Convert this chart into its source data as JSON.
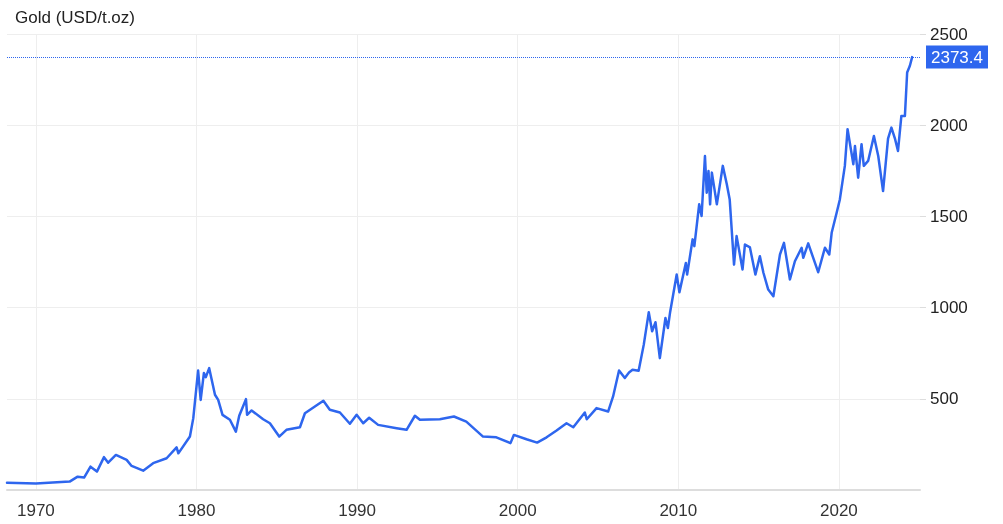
{
  "chart_data": {
    "type": "line",
    "title": "Gold (USD/t.oz)",
    "xlim": [
      1968.2,
      2025.05
    ],
    "xticks": [
      1970,
      1980,
      1990,
      2000,
      2010,
      2020
    ],
    "ylim": [
      0,
      2500
    ],
    "yticks": [
      500,
      1000,
      1500,
      2000,
      2500
    ],
    "grid": true,
    "marker": "none",
    "line_style": "solid",
    "ref_lines": [
      {
        "axis": "y",
        "value": 2373.4,
        "label": "2373.4",
        "color": "#2e66ee",
        "line_style": "dotted"
      }
    ],
    "series": [
      {
        "color": "#2e66ee",
        "x": [
          1968.2,
          1970,
          1972.1,
          1972.6,
          1973,
          1973.4,
          1973.8,
          1974.24,
          1974.5,
          1974.98,
          1975.65,
          1975.96,
          1976.68,
          1977.3,
          1978.14,
          1978.76,
          1978.87,
          1979.59,
          1979.8,
          1980.1,
          1980.26,
          1980.46,
          1980.58,
          1980.79,
          1981.15,
          1981.35,
          1981.62,
          1982.08,
          1982.45,
          1982.66,
          1983.08,
          1983.15,
          1983.43,
          1984.15,
          1984.57,
          1985.15,
          1985.6,
          1986.44,
          1986.75,
          1987.37,
          1987.9,
          1988.3,
          1988.93,
          1989.55,
          1989.97,
          1990.38,
          1990.75,
          1991.31,
          1992.46,
          1993.08,
          1993.6,
          1993.91,
          1995.15,
          1996.03,
          1996.8,
          1997.84,
          1998.67,
          1999.55,
          1999.76,
          2000.55,
          2001.21,
          2001.8,
          2002.42,
          2003.04,
          2003.46,
          2004.18,
          2004.3,
          2004.91,
          2005.63,
          2005.94,
          2006.31,
          2006.67,
          2006.93,
          2007.15,
          2007.53,
          2007.85,
          2008.16,
          2008.37,
          2008.58,
          2008.85,
          2009.2,
          2009.35,
          2009.49,
          2009.9,
          2010.07,
          2010.47,
          2010.55,
          2010.89,
          2011.0,
          2011.3,
          2011.45,
          2011.66,
          2011.77,
          2011.88,
          2011.98,
          2012.09,
          2012.4,
          2012.77,
          2013.02,
          2013.2,
          2013.47,
          2013.63,
          2014.0,
          2014.15,
          2014.46,
          2014.8,
          2015.08,
          2015.3,
          2015.6,
          2015.92,
          2016.33,
          2016.58,
          2016.95,
          2017.26,
          2017.68,
          2017.78,
          2018.09,
          2018.71,
          2019.13,
          2019.4,
          2019.55,
          2019.86,
          2020.06,
          2020.37,
          2020.54,
          2020.9,
          2021.0,
          2021.2,
          2021.41,
          2021.55,
          2021.82,
          2022.18,
          2022.45,
          2022.75,
          2023.06,
          2023.27,
          2023.5,
          2023.68,
          2023.89,
          2024.11,
          2024.25,
          2024.42,
          2024.56
        ],
        "values": [
          40,
          35,
          46,
          73,
          68,
          128,
          101,
          180,
          150,
          192,
          165,
          132,
          106,
          147,
          174,
          234,
          201,
          293,
          394,
          655,
          494,
          641,
          619,
          668,
          522,
          494,
          412,
          385,
          320,
          407,
          498,
          412,
          436,
          388,
          366,
          293,
          330,
          344,
          421,
          458,
          489,
          440,
          425,
          363,
          412,
          366,
          396,
          357,
          339,
          330,
          407,
          385,
          388,
          403,
          375,
          293,
          289,
          257,
          302,
          278,
          260,
          289,
          326,
          366,
          344,
          425,
          388,
          449,
          430,
          513,
          655,
          614,
          644,
          659,
          654,
          797,
          974,
          870,
          920,
          723,
          943,
          888,
          975,
          1181,
          1084,
          1245,
          1181,
          1374,
          1337,
          1566,
          1502,
          1831,
          1630,
          1749,
          1566,
          1740,
          1566,
          1777,
          1676,
          1593,
          1236,
          1392,
          1209,
          1346,
          1330,
          1181,
          1282,
          1191,
          1099,
          1062,
          1291,
          1355,
          1154,
          1254,
          1328,
          1273,
          1352,
          1194,
          1328,
          1291,
          1410,
          1520,
          1593,
          1777,
          1978,
          1786,
          1886,
          1712,
          1896,
          1777,
          1804,
          1941,
          1831,
          1639,
          1927,
          1987,
          1923,
          1859,
          2051,
          2051,
          2289,
          2326,
          2373.4
        ]
      }
    ]
  }
}
